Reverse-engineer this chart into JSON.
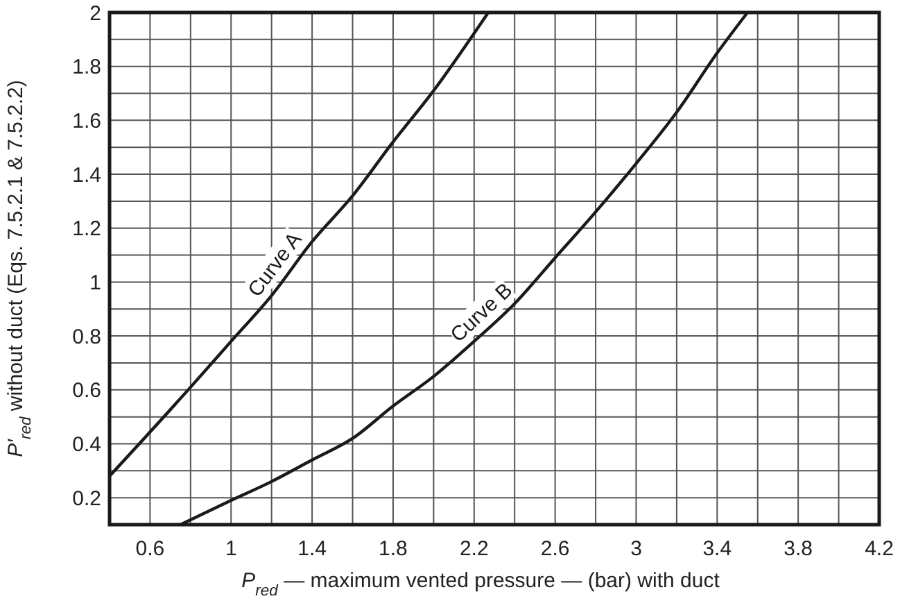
{
  "chart_data": {
    "type": "line",
    "xlabel": "P$_{red}$ — maximum vented pressure — (bar) with duct",
    "ylabel": "P′$_{red}$ without duct (Eqs. 7.5.2.1 & 7.5.2.2)",
    "xlim": [
      0.4,
      4.2
    ],
    "ylim": [
      0.1,
      2
    ],
    "xticks": [
      {
        "value": 0.4,
        "label": null
      },
      0.6,
      {
        "value": 0.8,
        "label": null
      },
      1,
      {
        "value": 1.2,
        "label": null
      },
      1.4,
      {
        "value": 1.6,
        "label": null
      },
      1.8,
      {
        "value": 2,
        "label": null
      },
      2.2,
      {
        "value": 2.4,
        "label": null
      },
      2.6,
      {
        "value": 2.8,
        "label": null
      },
      3,
      {
        "value": 3.2,
        "label": null
      },
      3.4,
      {
        "value": 3.6,
        "label": null
      },
      3.8,
      {
        "value": 4,
        "label": null
      },
      4.2
    ],
    "yticks": [
      {
        "value": 0.1,
        "label": null
      },
      0.2,
      {
        "value": 0.3,
        "label": null
      },
      0.4,
      {
        "value": 0.5,
        "label": null
      },
      0.6,
      {
        "value": 0.7,
        "label": null
      },
      0.8,
      {
        "value": 0.9,
        "label": null
      },
      1,
      {
        "value": 1.1,
        "label": null
      },
      1.2,
      {
        "value": 1.3,
        "label": null
      },
      1.4,
      {
        "value": 1.5,
        "label": null
      },
      1.6,
      {
        "value": 1.7,
        "label": null
      },
      1.8,
      {
        "value": 1.9,
        "label": null
      },
      2
    ],
    "grid": true,
    "marker": "none",
    "line_style": "solid",
    "series": [
      {
        "name": "Curve A",
        "color": "#1a1a1a",
        "x": [
          0.4,
          0.8,
          1.0,
          1.2,
          1.4,
          1.6,
          1.8,
          2.0,
          2.27
        ],
        "values": [
          0.28,
          0.61,
          0.78,
          0.95,
          1.15,
          1.32,
          1.52,
          1.71,
          2.0
        ]
      },
      {
        "name": "Curve B",
        "color": "#1a1a1a",
        "x": [
          0.75,
          1.0,
          1.2,
          1.4,
          1.6,
          1.8,
          2.0,
          2.2,
          2.4,
          2.6,
          2.8,
          3.0,
          3.2,
          3.4,
          3.55
        ],
        "values": [
          0.1,
          0.19,
          0.26,
          0.34,
          0.42,
          0.54,
          0.65,
          0.78,
          0.92,
          1.09,
          1.26,
          1.44,
          1.63,
          1.85,
          2.0
        ]
      }
    ]
  }
}
